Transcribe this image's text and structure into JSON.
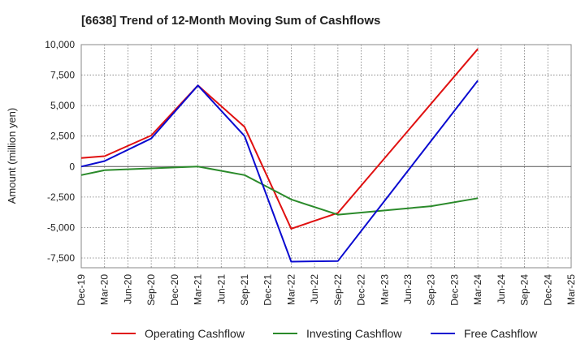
{
  "chart_data": {
    "type": "line",
    "title": "[6638]  Trend of 12-Month Moving Sum of Cashflows",
    "xlabel": "",
    "ylabel": "Amount (million yen)",
    "ylim": [
      -8300,
      10000
    ],
    "yticks": [
      {
        "value": 10000,
        "label": "10,000"
      },
      {
        "value": 7500,
        "label": "7,500"
      },
      {
        "value": 5000,
        "label": "5,000"
      },
      {
        "value": 2500,
        "label": "2,500"
      },
      {
        "value": 0,
        "label": "0"
      },
      {
        "value": -2500,
        "label": "-2,500"
      },
      {
        "value": -5000,
        "label": "-5,000"
      },
      {
        "value": -7500,
        "label": "-7,500"
      }
    ],
    "categories": [
      "Dec-19",
      "Mar-20",
      "Jun-20",
      "Sep-20",
      "Dec-20",
      "Mar-21",
      "Jun-21",
      "Sep-21",
      "Dec-21",
      "Mar-22",
      "Jun-22",
      "Sep-22",
      "Dec-22",
      "Mar-23",
      "Jun-23",
      "Sep-23",
      "Dec-23",
      "Mar-24",
      "Jun-24",
      "Sep-24",
      "Dec-24",
      "Mar-25"
    ],
    "grid": true,
    "legend": "bottom",
    "series": [
      {
        "name": "Operating Cashflow",
        "color": "#e01010",
        "values": [
          700,
          850,
          null,
          2550,
          null,
          6650,
          null,
          3250,
          null,
          -5100,
          null,
          -3800,
          null,
          null,
          null,
          null,
          null,
          9650,
          null,
          null,
          null,
          null
        ]
      },
      {
        "name": "Investing Cashflow",
        "color": "#2a8a2a",
        "values": [
          -700,
          -300,
          null,
          -150,
          null,
          0,
          null,
          -700,
          null,
          -2700,
          null,
          -3950,
          null,
          null,
          null,
          -3250,
          null,
          -2600,
          null,
          null,
          null,
          null
        ]
      },
      {
        "name": "Free Cashflow",
        "color": "#0a0ad0",
        "values": [
          0,
          450,
          null,
          2300,
          null,
          6650,
          null,
          2500,
          null,
          -7800,
          null,
          -7750,
          null,
          null,
          null,
          null,
          null,
          7050,
          null,
          null,
          null,
          null
        ]
      }
    ]
  }
}
